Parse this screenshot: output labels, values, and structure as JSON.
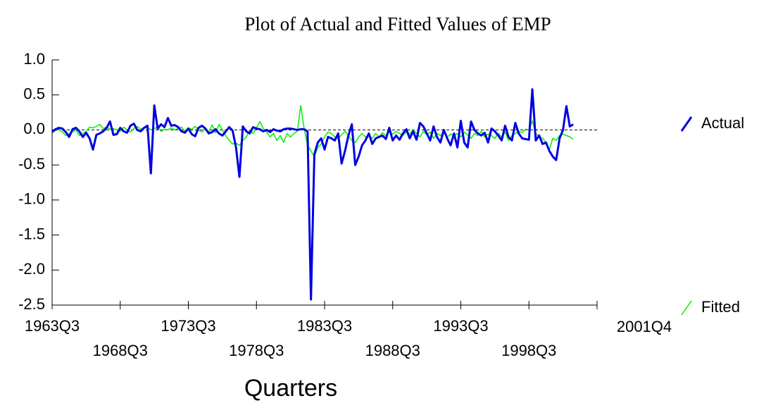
{
  "chart_data": {
    "type": "line",
    "title": "Plot of Actual and Fitted Values of EMP",
    "x_label": "Quarters",
    "categories": [
      "1963Q3",
      null,
      null,
      null,
      null,
      null,
      null,
      null,
      null,
      null,
      null,
      null,
      null,
      null,
      null,
      null,
      null,
      null,
      null,
      null,
      "1968Q3",
      null,
      null,
      null,
      null,
      null,
      null,
      null,
      null,
      null,
      null,
      null,
      null,
      null,
      null,
      null,
      null,
      null,
      null,
      null,
      "1973Q3",
      null,
      null,
      null,
      null,
      null,
      null,
      null,
      null,
      null,
      null,
      null,
      null,
      null,
      null,
      null,
      null,
      null,
      null,
      null,
      "1978Q3",
      null,
      null,
      null,
      null,
      null,
      null,
      null,
      null,
      null,
      null,
      null,
      null,
      null,
      null,
      null,
      null,
      null,
      null,
      null,
      "1983Q3",
      null,
      null,
      null,
      null,
      null,
      null,
      null,
      null,
      null,
      null,
      null,
      null,
      null,
      null,
      null,
      null,
      null,
      null,
      null,
      "1988Q3",
      null,
      null,
      null,
      null,
      null,
      null,
      null,
      null,
      null,
      null,
      null,
      null,
      null,
      null,
      null,
      null,
      null,
      null,
      null,
      "1993Q3",
      null,
      null,
      null,
      null,
      null,
      null,
      null,
      null,
      null,
      null,
      null,
      null,
      null,
      null,
      null,
      null,
      null,
      null,
      null,
      "1998Q3",
      null,
      null,
      null,
      null,
      null,
      null,
      null,
      null,
      null,
      null,
      null,
      null,
      "2001Q4"
    ],
    "series": [
      {
        "name": "Actual",
        "color": "#0000e0",
        "values": [
          -0.03,
          0.01,
          0.03,
          0.02,
          -0.03,
          -0.1,
          0.01,
          0.03,
          -0.02,
          -0.1,
          -0.04,
          -0.12,
          -0.28,
          -0.07,
          -0.05,
          -0.02,
          0.03,
          0.12,
          -0.07,
          -0.06,
          0.03,
          -0.02,
          -0.04,
          0.06,
          0.09,
          0.0,
          -0.02,
          0.03,
          0.06,
          -0.62,
          0.35,
          0.02,
          0.08,
          0.04,
          0.17,
          0.06,
          0.07,
          0.04,
          -0.02,
          -0.04,
          0.02,
          -0.06,
          -0.09,
          0.03,
          0.06,
          0.02,
          -0.05,
          -0.03,
          0.01,
          -0.05,
          -0.08,
          -0.02,
          0.04,
          -0.01,
          -0.25,
          -0.67,
          0.05,
          -0.02,
          -0.05,
          0.04,
          0.02,
          0.01,
          -0.02,
          0.0,
          -0.03,
          0.01,
          -0.01,
          -0.02,
          0.01,
          0.02,
          0.02,
          0.01,
          0.0,
          0.01,
          0.01,
          -0.02,
          -2.42,
          -0.35,
          -0.18,
          -0.12,
          -0.28,
          -0.1,
          -0.12,
          -0.15,
          -0.05,
          -0.48,
          -0.3,
          -0.08,
          0.08,
          -0.5,
          -0.38,
          -0.22,
          -0.15,
          -0.05,
          -0.2,
          -0.12,
          -0.1,
          -0.08,
          -0.13,
          0.03,
          -0.15,
          -0.08,
          -0.14,
          -0.05,
          0.01,
          -0.12,
          -0.02,
          -0.14,
          0.1,
          0.05,
          -0.05,
          -0.15,
          0.05,
          -0.1,
          -0.18,
          0.0,
          -0.12,
          -0.22,
          -0.05,
          -0.25,
          0.13,
          -0.18,
          -0.25,
          0.12,
          0.0,
          -0.05,
          -0.08,
          -0.04,
          -0.18,
          0.02,
          -0.02,
          -0.08,
          -0.15,
          0.06,
          -0.1,
          -0.15,
          0.1,
          -0.05,
          -0.12,
          -0.13,
          -0.14,
          0.58,
          -0.15,
          -0.08,
          -0.2,
          -0.18,
          -0.3,
          -0.38,
          -0.43,
          -0.12,
          0.0,
          0.34,
          0.05,
          0.08
        ]
      },
      {
        "name": "Fitted",
        "color": "#00ee00",
        "values": [
          -0.02,
          -0.01,
          0.01,
          -0.03,
          -0.08,
          -0.05,
          -0.03,
          0.0,
          -0.08,
          -0.05,
          -0.02,
          0.04,
          0.03,
          0.05,
          0.08,
          0.02,
          0.04,
          0.01,
          0.02,
          0.0,
          -0.02,
          0.04,
          0.0,
          -0.03,
          0.02,
          0.05,
          0.01,
          0.03,
          0.04,
          0.0,
          0.02,
          0.04,
          -0.02,
          0.01,
          0.0,
          0.03,
          0.0,
          0.02,
          0.04,
          -0.02,
          0.03,
          0.01,
          0.05,
          0.0,
          -0.03,
          0.02,
          -0.03,
          0.07,
          -0.04,
          0.08,
          0.0,
          -0.08,
          -0.15,
          -0.2,
          -0.19,
          -0.22,
          -0.15,
          -0.1,
          0.0,
          -0.05,
          0.03,
          0.12,
          0.02,
          -0.03,
          -0.1,
          -0.05,
          -0.15,
          -0.08,
          -0.18,
          -0.05,
          -0.1,
          -0.05,
          -0.02,
          0.35,
          0.02,
          -0.22,
          -0.3,
          -0.38,
          -0.25,
          -0.2,
          -0.1,
          -0.03,
          -0.05,
          -0.1,
          -0.12,
          -0.07,
          -0.02,
          -0.08,
          -0.15,
          -0.18,
          -0.1,
          -0.05,
          -0.1,
          -0.08,
          -0.12,
          -0.05,
          -0.1,
          -0.04,
          -0.08,
          -0.03,
          -0.06,
          -0.02,
          -0.05,
          -0.08,
          -0.03,
          -0.06,
          0.0,
          -0.05,
          -0.1,
          -0.02,
          -0.07,
          -0.03,
          -0.12,
          -0.05,
          -0.08,
          -0.04,
          -0.1,
          -0.06,
          -0.08,
          -0.05,
          -0.1,
          -0.03,
          -0.07,
          -0.12,
          -0.05,
          -0.08,
          -0.02,
          -0.1,
          -0.06,
          -0.08,
          -0.12,
          -0.05,
          -0.1,
          -0.03,
          -0.15,
          -0.08,
          -0.05,
          -0.02,
          -0.04,
          0.01,
          0.0,
          0.13,
          -0.05,
          -0.1,
          -0.12,
          -0.18,
          -0.28,
          -0.12,
          -0.15,
          -0.08,
          -0.06,
          -0.08,
          -0.1,
          -0.13
        ]
      }
    ],
    "ylim": [
      -2.5,
      1.0
    ],
    "yticks": [
      {
        "value": -2.5,
        "label": "-2.5"
      },
      {
        "value": -2.0,
        "label": "-2.0"
      },
      -1.5,
      {
        "value": -1.0,
        "label": "-1.0"
      },
      -0.5,
      {
        "value": 0.0,
        "label": "0.0"
      },
      0.5,
      {
        "value": 1.0,
        "label": "1.0"
      }
    ],
    "zero_line": true
  }
}
